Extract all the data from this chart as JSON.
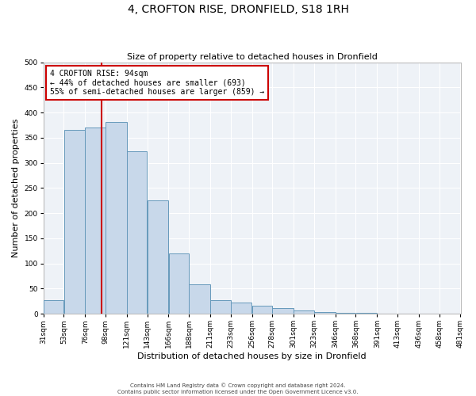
{
  "title": "4, CROFTON RISE, DRONFIELD, S18 1RH",
  "subtitle": "Size of property relative to detached houses in Dronfield",
  "xlabel": "Distribution of detached houses by size in Dronfield",
  "ylabel": "Number of detached properties",
  "bar_values": [
    27,
    365,
    370,
    382,
    323,
    225,
    120,
    58,
    27,
    23,
    16,
    11,
    6,
    3,
    2,
    1
  ],
  "bar_edges": [
    31,
    53,
    76,
    98,
    121,
    143,
    166,
    188,
    211,
    233,
    256,
    278,
    301,
    323,
    346,
    368,
    391
  ],
  "tick_labels": [
    "31sqm",
    "53sqm",
    "76sqm",
    "98sqm",
    "121sqm",
    "143sqm",
    "166sqm",
    "188sqm",
    "211sqm",
    "233sqm",
    "256sqm",
    "278sqm",
    "301sqm",
    "323sqm",
    "346sqm",
    "368sqm",
    "391sqm",
    "413sqm",
    "436sqm",
    "458sqm",
    "481sqm"
  ],
  "all_tick_positions": [
    31,
    53,
    76,
    98,
    121,
    143,
    166,
    188,
    211,
    233,
    256,
    278,
    301,
    323,
    346,
    368,
    391,
    413,
    436,
    458,
    481
  ],
  "property_size": 94,
  "vline_color": "#cc0000",
  "bar_facecolor": "#c8d8ea",
  "bar_edgecolor": "#6699bb",
  "background_color": "#eef2f7",
  "annotation_line1": "4 CROFTON RISE: 94sqm",
  "annotation_line2": "← 44% of detached houses are smaller (693)",
  "annotation_line3": "55% of semi-detached houses are larger (859) →",
  "annotation_box_edgecolor": "#cc0000",
  "ylim": [
    0,
    500
  ],
  "yticks": [
    0,
    50,
    100,
    150,
    200,
    250,
    300,
    350,
    400,
    450,
    500
  ],
  "footer_line1": "Contains HM Land Registry data © Crown copyright and database right 2024.",
  "footer_line2": "Contains public sector information licensed under the Open Government Licence v3.0.",
  "title_fontsize": 10,
  "subtitle_fontsize": 8,
  "xlabel_fontsize": 8,
  "ylabel_fontsize": 8,
  "tick_fontsize": 6.5,
  "footer_fontsize": 5,
  "annotation_fontsize": 7
}
